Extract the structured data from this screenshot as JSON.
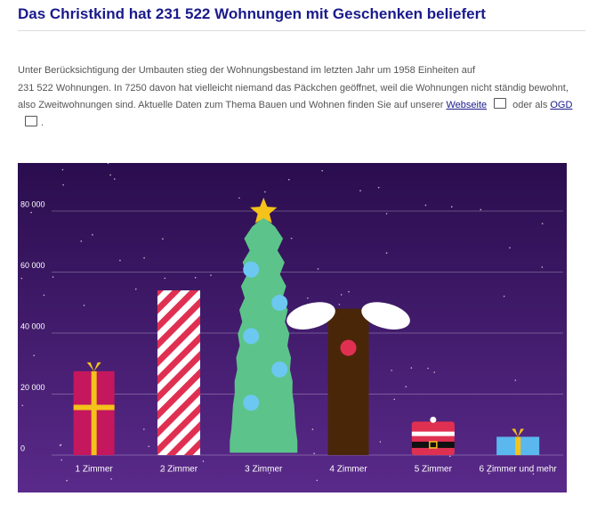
{
  "header": {
    "title": "Das Christkind hat 231 522 Wohnungen mit Geschenken beliefert"
  },
  "paragraph": {
    "lines": [
      "Unter Berücksichtigung der Umbauten stieg der Wohnungsbestand im letzten Jahr um 1958 Einheiten auf",
      "231 522 Wohnungen. In 7250 davon hat vielleicht niemand das Päckchen geöffnet, weil die Wohnungen nicht ständig bewohnt,",
      "also Zweitwohnungen sind. Aktuelle Daten zum Thema Bauen und Wohnen finden Sie auf unserer "
    ],
    "link1": "Webseite",
    "between": " oder als ",
    "link2": "OGD",
    "end": "."
  },
  "chart_data": {
    "type": "bar",
    "categories": [
      "1 Zimmer",
      "2 Zimmer",
      "3 Zimmer",
      "4 Zimmer",
      "5 Zimmer",
      "6 Zimmer und mehr"
    ],
    "values": [
      27500,
      54000,
      78000,
      48000,
      11000,
      6000
    ],
    "ylim": [
      0,
      80000
    ],
    "yticks": [
      0,
      {
        "value": 20000,
        "label": "20 000"
      },
      {
        "value": 40000,
        "label": "40 000"
      },
      {
        "value": 60000,
        "label": "60 000"
      },
      {
        "value": 80000,
        "label": "80 000"
      }
    ],
    "grid": true
  }
}
